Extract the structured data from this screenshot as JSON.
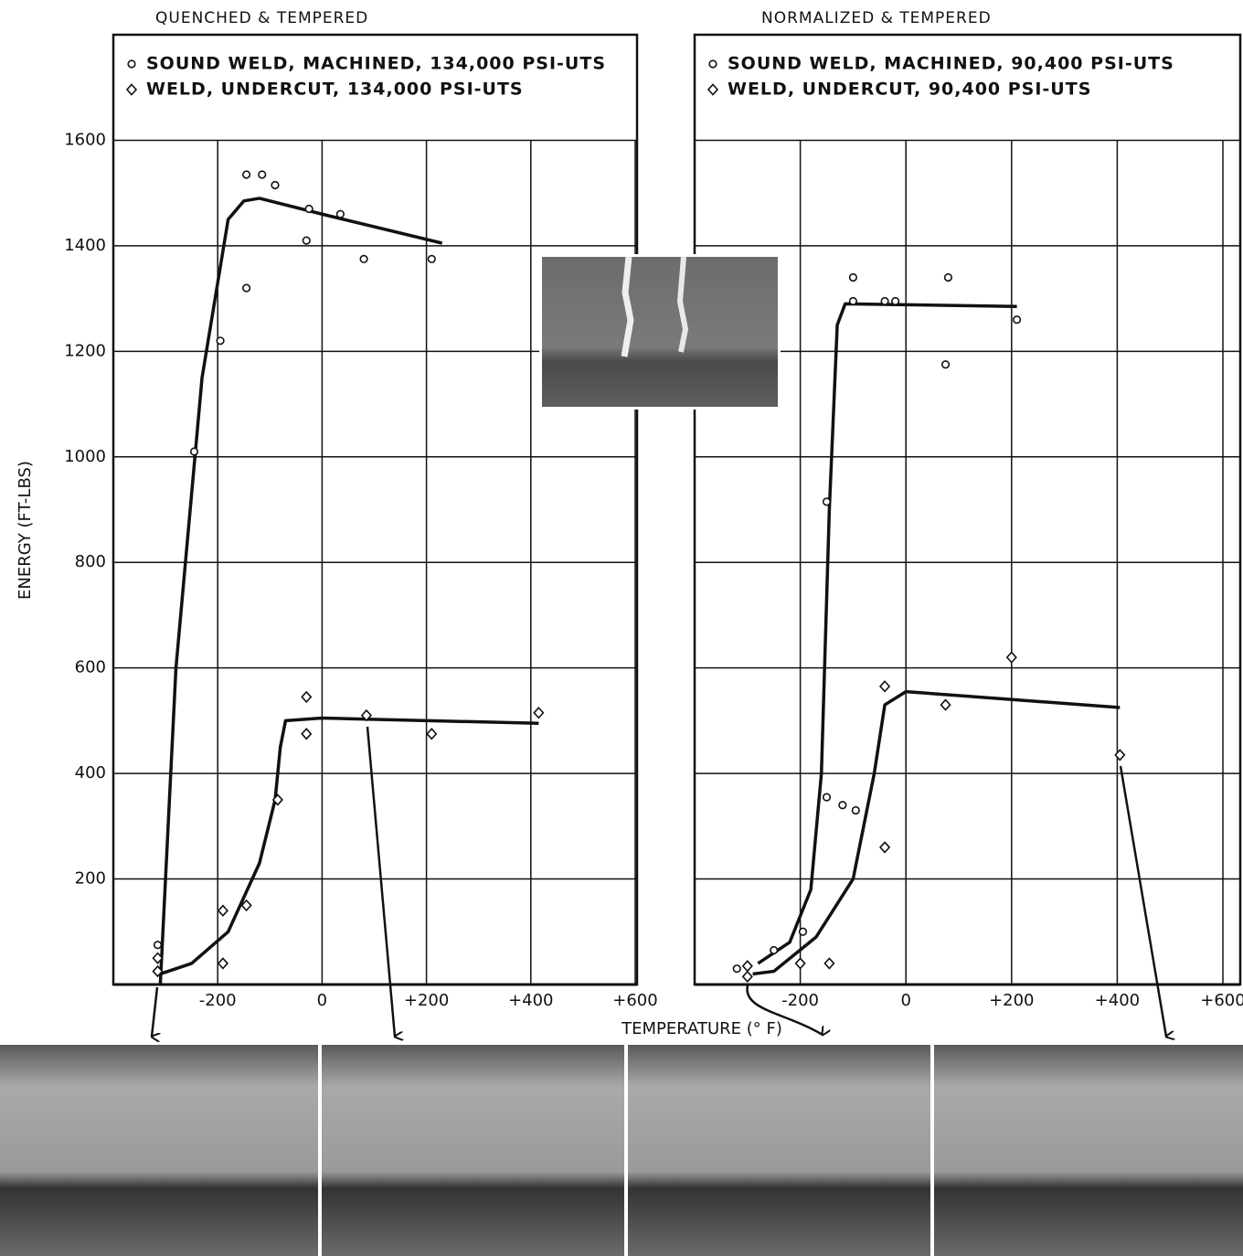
{
  "chart_data": [
    {
      "type": "scatter",
      "title": "QUENCHED & TEMPERED",
      "xlabel": "TEMPERATURE (° F)",
      "ylabel": "ENERGY (FT-LBS)",
      "xlim": [
        -400,
        600
      ],
      "ylim": [
        0,
        1800
      ],
      "xticks": [
        -200,
        0,
        {
          "value": 200,
          "label": "+200"
        },
        {
          "value": 400,
          "label": "+400"
        },
        {
          "value": 600,
          "label": "+600"
        }
      ],
      "yticks": [
        200,
        400,
        600,
        800,
        1000,
        1200,
        1400,
        1600
      ],
      "ytick_labels": true,
      "grid": true,
      "legend": "top-left",
      "series": [
        {
          "name": "SOUND WELD, MACHINED, 134,000 PSI-UTS",
          "marker": "circle",
          "color": "#111111",
          "x": [
            -315,
            -145,
            -115,
            -90,
            -25,
            35,
            -30,
            80,
            210,
            -145,
            -195,
            -245
          ],
          "values": [
            75,
            1535,
            1535,
            1515,
            1470,
            1460,
            1410,
            1375,
            1375,
            1320,
            1220,
            1010
          ],
          "fit_x": [
            -310,
            -280,
            -230,
            -180,
            -150,
            -120,
            0,
            230
          ],
          "fit_y": [
            0,
            600,
            1150,
            1450,
            1485,
            1490,
            1460,
            1405
          ]
        },
        {
          "name": "WELD, UNDERCUT, 134,000 PSI-UTS",
          "marker": "diamond",
          "color": "#111111",
          "x": [
            -315,
            -315,
            -190,
            -190,
            -145,
            -85,
            -30,
            -30,
            85,
            210,
            415
          ],
          "values": [
            50,
            25,
            140,
            40,
            150,
            350,
            545,
            475,
            510,
            475,
            515
          ],
          "fit_x": [
            -310,
            -250,
            -180,
            -120,
            -90,
            -80,
            -70,
            0,
            415
          ],
          "fit_y": [
            20,
            40,
            100,
            230,
            350,
            450,
            500,
            505,
            495
          ]
        }
      ]
    },
    {
      "type": "scatter",
      "title": "NORMALIZED & TEMPERED",
      "xlim": [
        -400,
        600
      ],
      "ylim": [
        0,
        1800
      ],
      "xticks": [
        -200,
        0,
        {
          "value": 200,
          "label": "+200"
        },
        {
          "value": 400,
          "label": "+400"
        },
        {
          "value": 600,
          "label": "+600"
        }
      ],
      "yticks": [
        200,
        400,
        600,
        800,
        1000,
        1200,
        1400,
        1600
      ],
      "ytick_labels": false,
      "grid": true,
      "legend": "top-left",
      "series": [
        {
          "name": "SOUND WELD, MACHINED, 90,400 PSI-UTS",
          "marker": "circle",
          "color": "#111111",
          "x": [
            -320,
            -250,
            -195,
            -150,
            -100,
            -100,
            -40,
            -20,
            80,
            75,
            210,
            -150,
            -120,
            -95
          ],
          "values": [
            30,
            65,
            100,
            915,
            1340,
            1295,
            1295,
            1295,
            1340,
            1175,
            1260,
            355,
            340,
            330
          ],
          "fit_x": [
            -280,
            -220,
            -180,
            -160,
            -145,
            -130,
            -115,
            210
          ],
          "fit_y": [
            40,
            80,
            180,
            400,
            900,
            1250,
            1290,
            1285
          ]
        },
        {
          "name": "WELD, UNDERCUT, 90,400 PSI-UTS",
          "marker": "diamond",
          "color": "#111111",
          "x": [
            -300,
            -300,
            -200,
            -145,
            -40,
            -40,
            75,
            200,
            405
          ],
          "values": [
            35,
            15,
            40,
            40,
            260,
            565,
            530,
            620,
            435
          ],
          "fit_x": [
            -290,
            -250,
            -170,
            -100,
            -60,
            -40,
            0,
            405
          ],
          "fit_y": [
            20,
            25,
            90,
            200,
            400,
            530,
            555,
            525
          ]
        }
      ]
    }
  ]
}
